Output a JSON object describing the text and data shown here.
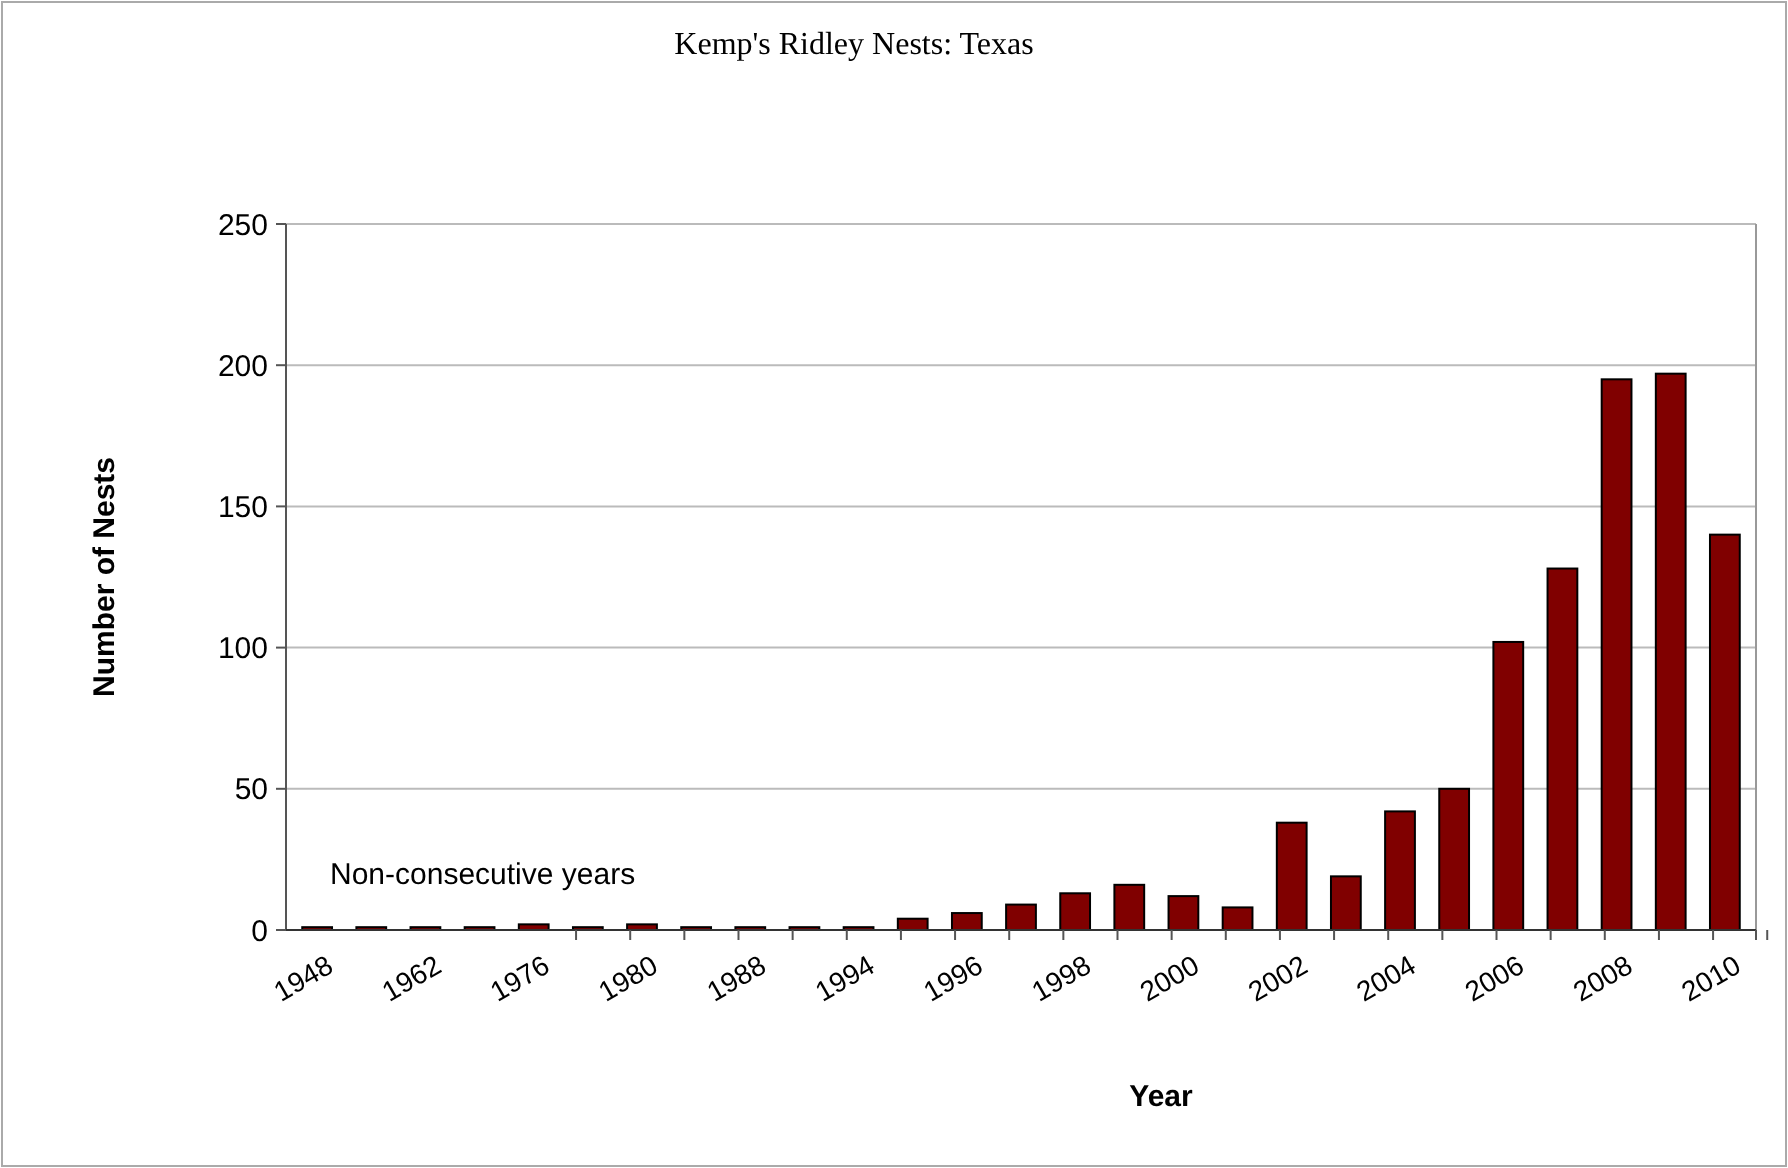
{
  "chart_data": {
    "type": "bar",
    "title": "Kemp's Ridley Nests: Texas",
    "xlabel": "Year",
    "ylabel": "Number of Nests",
    "categories": [
      "1948",
      null,
      "1962",
      null,
      "1976",
      null,
      "1980",
      null,
      "1988",
      null,
      "1994",
      null,
      "1996",
      null,
      "1998",
      null,
      "2000",
      null,
      "2002",
      null,
      "2004",
      null,
      "2006",
      null,
      "2008",
      null,
      "2010"
    ],
    "values": [
      1,
      1,
      1,
      1,
      2,
      1,
      2,
      1,
      1,
      1,
      1,
      4,
      6,
      9,
      13,
      16,
      12,
      8,
      38,
      19,
      42,
      50,
      102,
      128,
      195,
      197,
      140
    ],
    "color": "#800000",
    "ylim": [
      0,
      250
    ],
    "yticks": [
      0,
      50,
      100,
      150,
      200,
      250
    ],
    "grid": "y",
    "annotations": [
      "Non-consecutive years"
    ]
  }
}
